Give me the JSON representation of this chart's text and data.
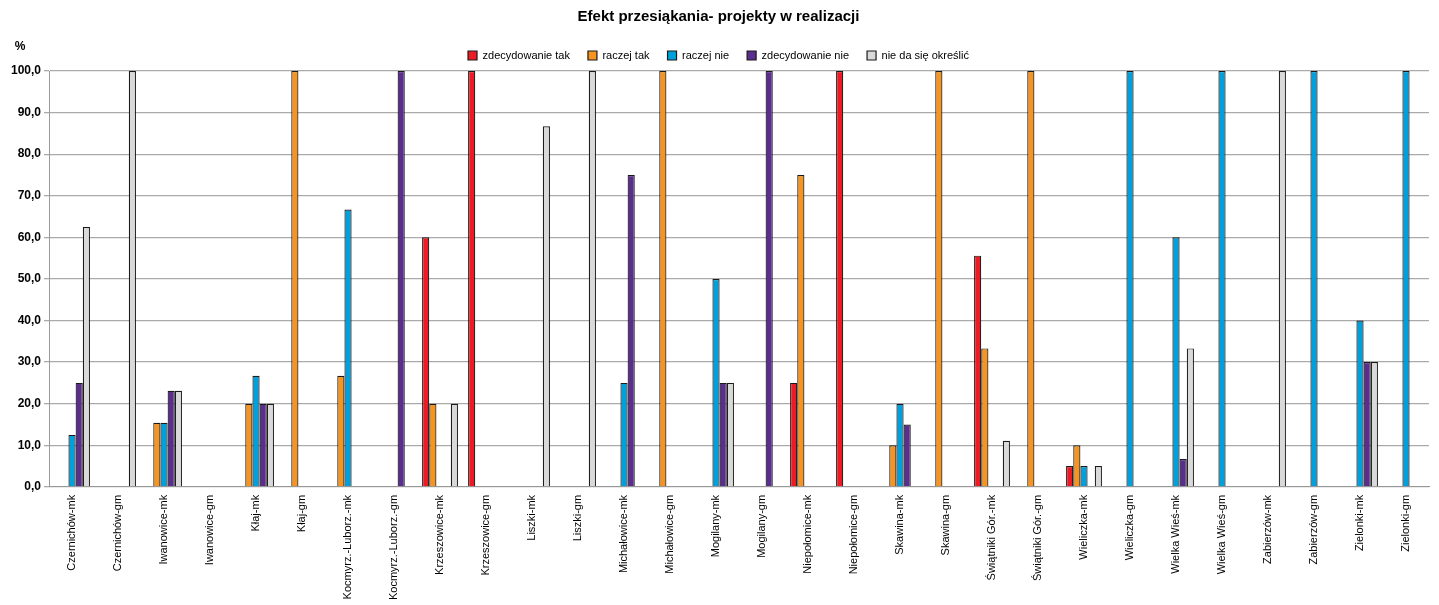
{
  "chart_data": {
    "type": "bar",
    "title": "Efekt przesiąkania- projekty w realizacji",
    "ylabel": "%",
    "categories": [
      "Czernichów-mk",
      "Czernichów-gm",
      "Iwanowice-mk",
      "Iwanowice-gm",
      "Kłaj-mk",
      "Kłaj-gm",
      "Kocmyrz.-Luborz.-mk",
      "Kocmyrz.-Luborz.-gm",
      "Krzeszowice-mk",
      "Krzeszowice-gm",
      "Liszki-mk",
      "Liszki-gm",
      "Michałowice-mk",
      "Michałowice-gm",
      "Mogilany-mk",
      "Mogilany-gm",
      "Niepołomice-mk",
      "Niepołomice-gm",
      "Skawina-mk",
      "Skawina-gm",
      "Świątniki Gór.-mk",
      "Świątniki Gór.-gm",
      "Wieliczka-mk",
      "Wieliczka-gm",
      "Wielka Wieś-mk",
      "Wielka Wieś-gm",
      "Zabierzów-mk",
      "Zabierzów-gm",
      "Zielonki-mk",
      "Zielonki-gm"
    ],
    "series": [
      {
        "name": "zdecydowanie tak",
        "color": "#ed1c24",
        "values": [
          null,
          null,
          null,
          null,
          null,
          null,
          null,
          null,
          60,
          100,
          null,
          null,
          null,
          null,
          null,
          null,
          25,
          100,
          null,
          null,
          55.6,
          null,
          5,
          null,
          null,
          null,
          null,
          null,
          null,
          null
        ]
      },
      {
        "name": "raczej tak",
        "color": "#f7941d",
        "values": [
          null,
          null,
          15.4,
          null,
          20,
          100,
          26.7,
          null,
          20,
          null,
          null,
          null,
          null,
          100,
          null,
          null,
          75,
          null,
          10,
          100,
          33.3,
          100,
          10,
          null,
          null,
          null,
          null,
          null,
          null,
          null
        ]
      },
      {
        "name": "raczej nie",
        "color": "#00a0dc",
        "values": [
          12.5,
          null,
          15.4,
          null,
          26.7,
          null,
          66.7,
          null,
          null,
          null,
          null,
          null,
          25,
          null,
          50,
          null,
          null,
          null,
          20,
          null,
          null,
          null,
          5,
          100,
          60,
          100,
          null,
          100,
          40,
          100
        ]
      },
      {
        "name": "zdecydowanie nie",
        "color": "#5b2d8e",
        "values": [
          25,
          null,
          23.1,
          null,
          20,
          null,
          null,
          100,
          null,
          null,
          null,
          null,
          75,
          null,
          25,
          100,
          null,
          null,
          15,
          null,
          null,
          null,
          null,
          null,
          6.7,
          null,
          null,
          null,
          30,
          null
        ]
      },
      {
        "name": "nie da się określić",
        "color": "#d9d9d9",
        "values": [
          62.5,
          100,
          23.1,
          null,
          20,
          null,
          null,
          null,
          20,
          null,
          86.7,
          100,
          null,
          null,
          25,
          null,
          null,
          null,
          null,
          null,
          11.1,
          null,
          5,
          null,
          33.3,
          null,
          100,
          null,
          30,
          null
        ]
      }
    ],
    "ylim": [
      0,
      100
    ],
    "yticks": [
      {
        "value": 0,
        "label": "0,0"
      },
      {
        "value": 10,
        "label": "10,0"
      },
      {
        "value": 20,
        "label": "20,0"
      },
      {
        "value": 30,
        "label": "30,0"
      },
      {
        "value": 40,
        "label": "40,0"
      },
      {
        "value": 50,
        "label": "50,0"
      },
      {
        "value": 60,
        "label": "60,0"
      },
      {
        "value": 70,
        "label": "70,0"
      },
      {
        "value": 80,
        "label": "80,0"
      },
      {
        "value": 90,
        "label": "90,0"
      },
      {
        "value": 100,
        "label": "100,0"
      }
    ],
    "grid": "y",
    "legend": "top"
  }
}
